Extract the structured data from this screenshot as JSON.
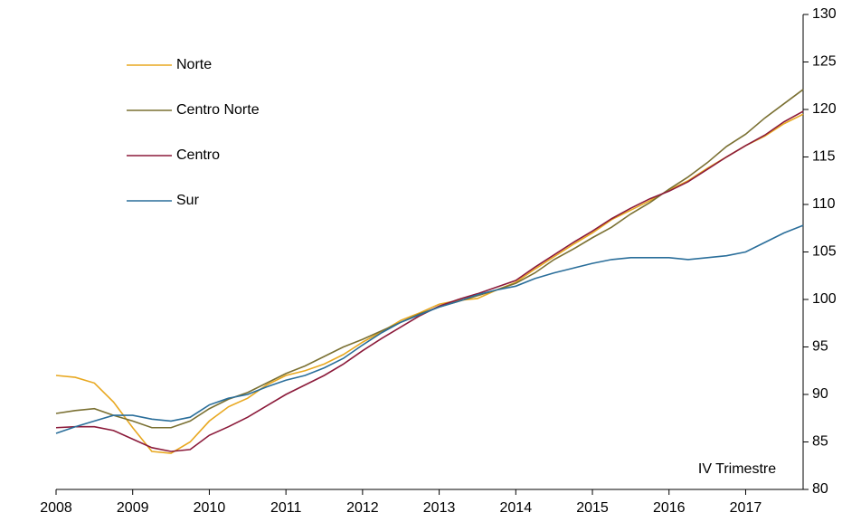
{
  "chart_data": {
    "type": "line",
    "annotation": "IV Trimestre",
    "x": [
      2008,
      2008.25,
      2008.5,
      2008.75,
      2009,
      2009.25,
      2009.5,
      2009.75,
      2010,
      2010.25,
      2010.5,
      2010.75,
      2011,
      2011.25,
      2011.5,
      2011.75,
      2012,
      2012.25,
      2012.5,
      2012.75,
      2013,
      2013.25,
      2013.5,
      2013.75,
      2014,
      2014.25,
      2014.5,
      2014.75,
      2015,
      2015.25,
      2015.5,
      2015.75,
      2016,
      2016.25,
      2016.5,
      2016.75,
      2017,
      2017.25,
      2017.5,
      2017.75
    ],
    "series": [
      {
        "name": "Norte",
        "color": "#e8a820",
        "values": [
          92,
          91.8,
          91.2,
          89.2,
          86.5,
          84,
          83.8,
          85,
          87.2,
          88.7,
          89.6,
          91,
          92,
          92.5,
          93.2,
          94.2,
          95.5,
          96.6,
          97.8,
          98.6,
          99.5,
          99.9,
          100.1,
          101,
          101.8,
          103.2,
          104.5,
          105.8,
          107,
          108.4,
          109.4,
          110.4,
          111.5,
          112.5,
          113.8,
          115,
          116.2,
          117.2,
          118.5,
          119.5
        ]
      },
      {
        "name": "Centro Norte",
        "color": "#7a7032",
        "values": [
          88,
          88.3,
          88.5,
          87.8,
          87.2,
          86.5,
          86.5,
          87.2,
          88.5,
          89.5,
          90.2,
          91.2,
          92.2,
          93,
          94,
          95,
          95.8,
          96.7,
          97.6,
          98.5,
          99.2,
          99.8,
          100.4,
          101,
          101.7,
          102.8,
          104.2,
          105.3,
          106.5,
          107.6,
          109,
          110.2,
          111.6,
          112.9,
          114.4,
          116.1,
          117.4,
          119.1,
          120.6,
          122.1
        ]
      },
      {
        "name": "Centro",
        "color": "#8b1a3a",
        "values": [
          86.5,
          86.6,
          86.6,
          86.2,
          85.3,
          84.4,
          84,
          84.2,
          85.7,
          86.6,
          87.6,
          88.8,
          90,
          91,
          92,
          93.2,
          94.6,
          95.9,
          97.1,
          98.3,
          99.3,
          100,
          100.6,
          101.3,
          102,
          103.4,
          104.7,
          106,
          107.2,
          108.5,
          109.6,
          110.6,
          111.4,
          112.4,
          113.7,
          115,
          116.2,
          117.3,
          118.7,
          119.8
        ]
      },
      {
        "name": "Sur",
        "color": "#2a6e9a",
        "values": [
          85.9,
          86.6,
          87.2,
          87.8,
          87.8,
          87.4,
          87.2,
          87.6,
          88.9,
          89.6,
          90,
          90.8,
          91.5,
          92,
          92.8,
          93.8,
          95.2,
          96.5,
          97.6,
          98.4,
          99.2,
          99.8,
          100.5,
          101,
          101.4,
          102.2,
          102.8,
          103.3,
          103.8,
          104.2,
          104.4,
          104.4,
          104.4,
          104.2,
          104.4,
          104.6,
          105,
          106,
          107,
          107.8
        ]
      }
    ],
    "xlim": [
      2008,
      2017.75
    ],
    "xticks": [
      2008,
      2009,
      2010,
      2011,
      2012,
      2013,
      2014,
      2015,
      2016,
      2017
    ],
    "ylim": [
      80,
      130
    ],
    "yticks": [
      80,
      85,
      90,
      95,
      100,
      105,
      110,
      115,
      120,
      125,
      130
    ]
  }
}
